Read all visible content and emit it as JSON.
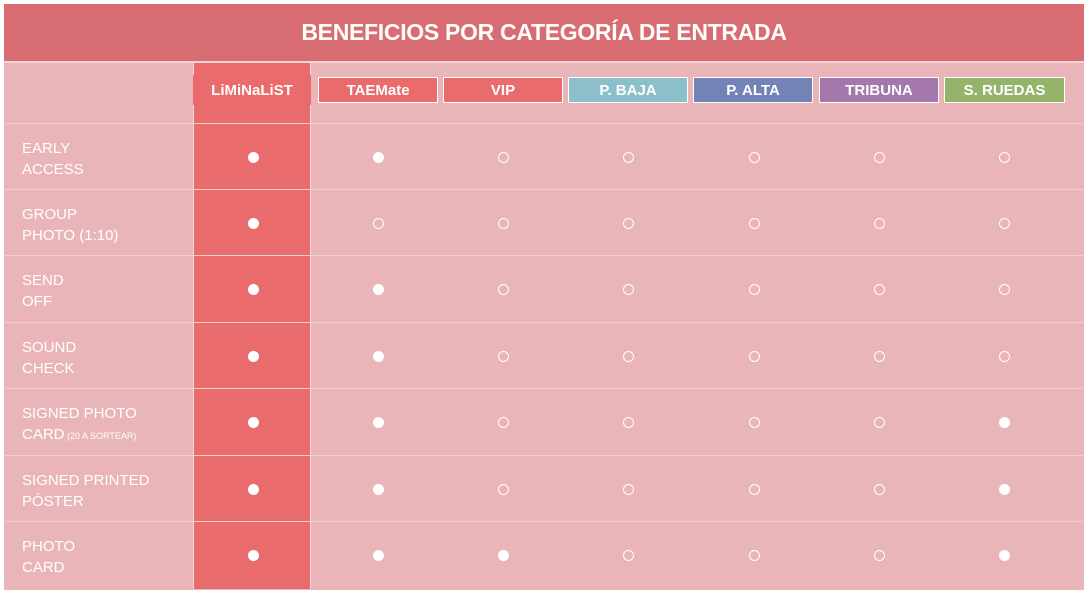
{
  "title": "BENEFICIOS POR CATEGORÍA DE ENTRADA",
  "categories": [
    {
      "label": "LiMiNaLiST",
      "color": "#e96b6c"
    },
    {
      "label": "TAEMate",
      "color": "#e96b6c"
    },
    {
      "label": "VIP",
      "color": "#e96b6c"
    },
    {
      "label": "P. BAJA",
      "color": "#8bbfc9"
    },
    {
      "label": "P. ALTA",
      "color": "#7283b5"
    },
    {
      "label": "TRIBUNA",
      "color": "#a478ad"
    },
    {
      "label": "S. RUEDAS",
      "color": "#93b46a"
    }
  ],
  "rows": [
    {
      "line1": "EARLY",
      "line2": "ACCESS",
      "note": "",
      "values": [
        true,
        true,
        false,
        false,
        false,
        false,
        false
      ]
    },
    {
      "line1": "GROUP",
      "line2": "PHOTO (1:10)",
      "note": "",
      "values": [
        true,
        false,
        false,
        false,
        false,
        false,
        false
      ]
    },
    {
      "line1": "SEND",
      "line2": "OFF",
      "note": "",
      "values": [
        true,
        true,
        false,
        false,
        false,
        false,
        false
      ]
    },
    {
      "line1": "SOUND",
      "line2": "CHECK",
      "note": "",
      "values": [
        true,
        true,
        false,
        false,
        false,
        false,
        false
      ]
    },
    {
      "line1": "SIGNED PHOTO",
      "line2": "CARD",
      "note": "(20 A SORTEAR)",
      "values": [
        true,
        true,
        false,
        false,
        false,
        false,
        true
      ]
    },
    {
      "line1": "SIGNED PRINTED",
      "line2": "PÓSTER",
      "note": "",
      "values": [
        true,
        true,
        false,
        false,
        false,
        false,
        true
      ]
    },
    {
      "line1": "PHOTO",
      "line2": "CARD",
      "note": "",
      "values": [
        true,
        true,
        true,
        false,
        false,
        false,
        true
      ]
    }
  ],
  "legend": {
    "included": "filled-circle",
    "not_included": "empty-circle"
  }
}
